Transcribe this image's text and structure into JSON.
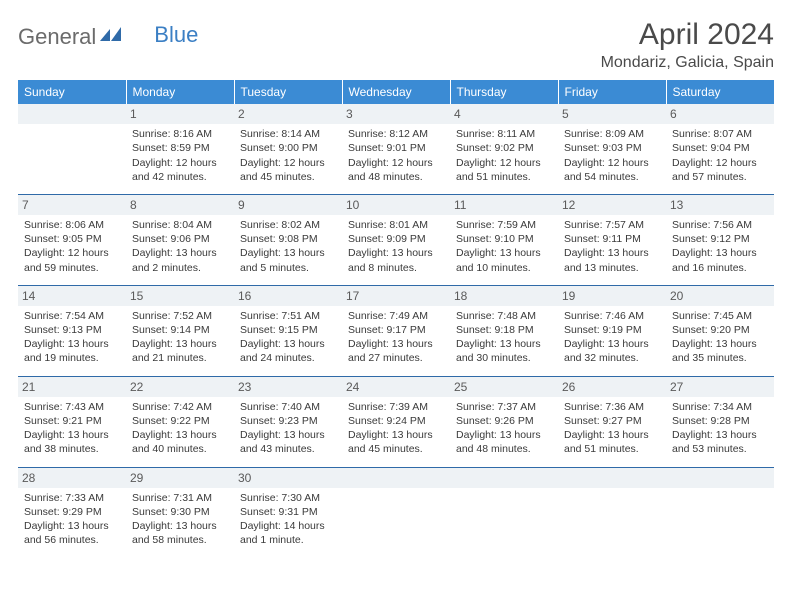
{
  "brand": {
    "part1": "General",
    "part2": "Blue"
  },
  "title": "April 2024",
  "location": "Mondariz, Galicia, Spain",
  "day_headers": [
    "Sunday",
    "Monday",
    "Tuesday",
    "Wednesday",
    "Thursday",
    "Friday",
    "Saturday"
  ],
  "colors": {
    "header_bg": "#3b8bd4",
    "header_text": "#ffffff",
    "rule": "#2f6aa8",
    "daynum_bg": "#eef2f5",
    "text": "#3a3a3a",
    "logo_gray": "#6b6b6b",
    "logo_blue": "#3b7fc4"
  },
  "weeks": [
    [
      null,
      {
        "n": "1",
        "sr": "Sunrise: 8:16 AM",
        "ss": "Sunset: 8:59 PM",
        "d1": "Daylight: 12 hours",
        "d2": "and 42 minutes."
      },
      {
        "n": "2",
        "sr": "Sunrise: 8:14 AM",
        "ss": "Sunset: 9:00 PM",
        "d1": "Daylight: 12 hours",
        "d2": "and 45 minutes."
      },
      {
        "n": "3",
        "sr": "Sunrise: 8:12 AM",
        "ss": "Sunset: 9:01 PM",
        "d1": "Daylight: 12 hours",
        "d2": "and 48 minutes."
      },
      {
        "n": "4",
        "sr": "Sunrise: 8:11 AM",
        "ss": "Sunset: 9:02 PM",
        "d1": "Daylight: 12 hours",
        "d2": "and 51 minutes."
      },
      {
        "n": "5",
        "sr": "Sunrise: 8:09 AM",
        "ss": "Sunset: 9:03 PM",
        "d1": "Daylight: 12 hours",
        "d2": "and 54 minutes."
      },
      {
        "n": "6",
        "sr": "Sunrise: 8:07 AM",
        "ss": "Sunset: 9:04 PM",
        "d1": "Daylight: 12 hours",
        "d2": "and 57 minutes."
      }
    ],
    [
      {
        "n": "7",
        "sr": "Sunrise: 8:06 AM",
        "ss": "Sunset: 9:05 PM",
        "d1": "Daylight: 12 hours",
        "d2": "and 59 minutes."
      },
      {
        "n": "8",
        "sr": "Sunrise: 8:04 AM",
        "ss": "Sunset: 9:06 PM",
        "d1": "Daylight: 13 hours",
        "d2": "and 2 minutes."
      },
      {
        "n": "9",
        "sr": "Sunrise: 8:02 AM",
        "ss": "Sunset: 9:08 PM",
        "d1": "Daylight: 13 hours",
        "d2": "and 5 minutes."
      },
      {
        "n": "10",
        "sr": "Sunrise: 8:01 AM",
        "ss": "Sunset: 9:09 PM",
        "d1": "Daylight: 13 hours",
        "d2": "and 8 minutes."
      },
      {
        "n": "11",
        "sr": "Sunrise: 7:59 AM",
        "ss": "Sunset: 9:10 PM",
        "d1": "Daylight: 13 hours",
        "d2": "and 10 minutes."
      },
      {
        "n": "12",
        "sr": "Sunrise: 7:57 AM",
        "ss": "Sunset: 9:11 PM",
        "d1": "Daylight: 13 hours",
        "d2": "and 13 minutes."
      },
      {
        "n": "13",
        "sr": "Sunrise: 7:56 AM",
        "ss": "Sunset: 9:12 PM",
        "d1": "Daylight: 13 hours",
        "d2": "and 16 minutes."
      }
    ],
    [
      {
        "n": "14",
        "sr": "Sunrise: 7:54 AM",
        "ss": "Sunset: 9:13 PM",
        "d1": "Daylight: 13 hours",
        "d2": "and 19 minutes."
      },
      {
        "n": "15",
        "sr": "Sunrise: 7:52 AM",
        "ss": "Sunset: 9:14 PM",
        "d1": "Daylight: 13 hours",
        "d2": "and 21 minutes."
      },
      {
        "n": "16",
        "sr": "Sunrise: 7:51 AM",
        "ss": "Sunset: 9:15 PM",
        "d1": "Daylight: 13 hours",
        "d2": "and 24 minutes."
      },
      {
        "n": "17",
        "sr": "Sunrise: 7:49 AM",
        "ss": "Sunset: 9:17 PM",
        "d1": "Daylight: 13 hours",
        "d2": "and 27 minutes."
      },
      {
        "n": "18",
        "sr": "Sunrise: 7:48 AM",
        "ss": "Sunset: 9:18 PM",
        "d1": "Daylight: 13 hours",
        "d2": "and 30 minutes."
      },
      {
        "n": "19",
        "sr": "Sunrise: 7:46 AM",
        "ss": "Sunset: 9:19 PM",
        "d1": "Daylight: 13 hours",
        "d2": "and 32 minutes."
      },
      {
        "n": "20",
        "sr": "Sunrise: 7:45 AM",
        "ss": "Sunset: 9:20 PM",
        "d1": "Daylight: 13 hours",
        "d2": "and 35 minutes."
      }
    ],
    [
      {
        "n": "21",
        "sr": "Sunrise: 7:43 AM",
        "ss": "Sunset: 9:21 PM",
        "d1": "Daylight: 13 hours",
        "d2": "and 38 minutes."
      },
      {
        "n": "22",
        "sr": "Sunrise: 7:42 AM",
        "ss": "Sunset: 9:22 PM",
        "d1": "Daylight: 13 hours",
        "d2": "and 40 minutes."
      },
      {
        "n": "23",
        "sr": "Sunrise: 7:40 AM",
        "ss": "Sunset: 9:23 PM",
        "d1": "Daylight: 13 hours",
        "d2": "and 43 minutes."
      },
      {
        "n": "24",
        "sr": "Sunrise: 7:39 AM",
        "ss": "Sunset: 9:24 PM",
        "d1": "Daylight: 13 hours",
        "d2": "and 45 minutes."
      },
      {
        "n": "25",
        "sr": "Sunrise: 7:37 AM",
        "ss": "Sunset: 9:26 PM",
        "d1": "Daylight: 13 hours",
        "d2": "and 48 minutes."
      },
      {
        "n": "26",
        "sr": "Sunrise: 7:36 AM",
        "ss": "Sunset: 9:27 PM",
        "d1": "Daylight: 13 hours",
        "d2": "and 51 minutes."
      },
      {
        "n": "27",
        "sr": "Sunrise: 7:34 AM",
        "ss": "Sunset: 9:28 PM",
        "d1": "Daylight: 13 hours",
        "d2": "and 53 minutes."
      }
    ],
    [
      {
        "n": "28",
        "sr": "Sunrise: 7:33 AM",
        "ss": "Sunset: 9:29 PM",
        "d1": "Daylight: 13 hours",
        "d2": "and 56 minutes."
      },
      {
        "n": "29",
        "sr": "Sunrise: 7:31 AM",
        "ss": "Sunset: 9:30 PM",
        "d1": "Daylight: 13 hours",
        "d2": "and 58 minutes."
      },
      {
        "n": "30",
        "sr": "Sunrise: 7:30 AM",
        "ss": "Sunset: 9:31 PM",
        "d1": "Daylight: 14 hours",
        "d2": "and 1 minute."
      },
      null,
      null,
      null,
      null
    ]
  ]
}
